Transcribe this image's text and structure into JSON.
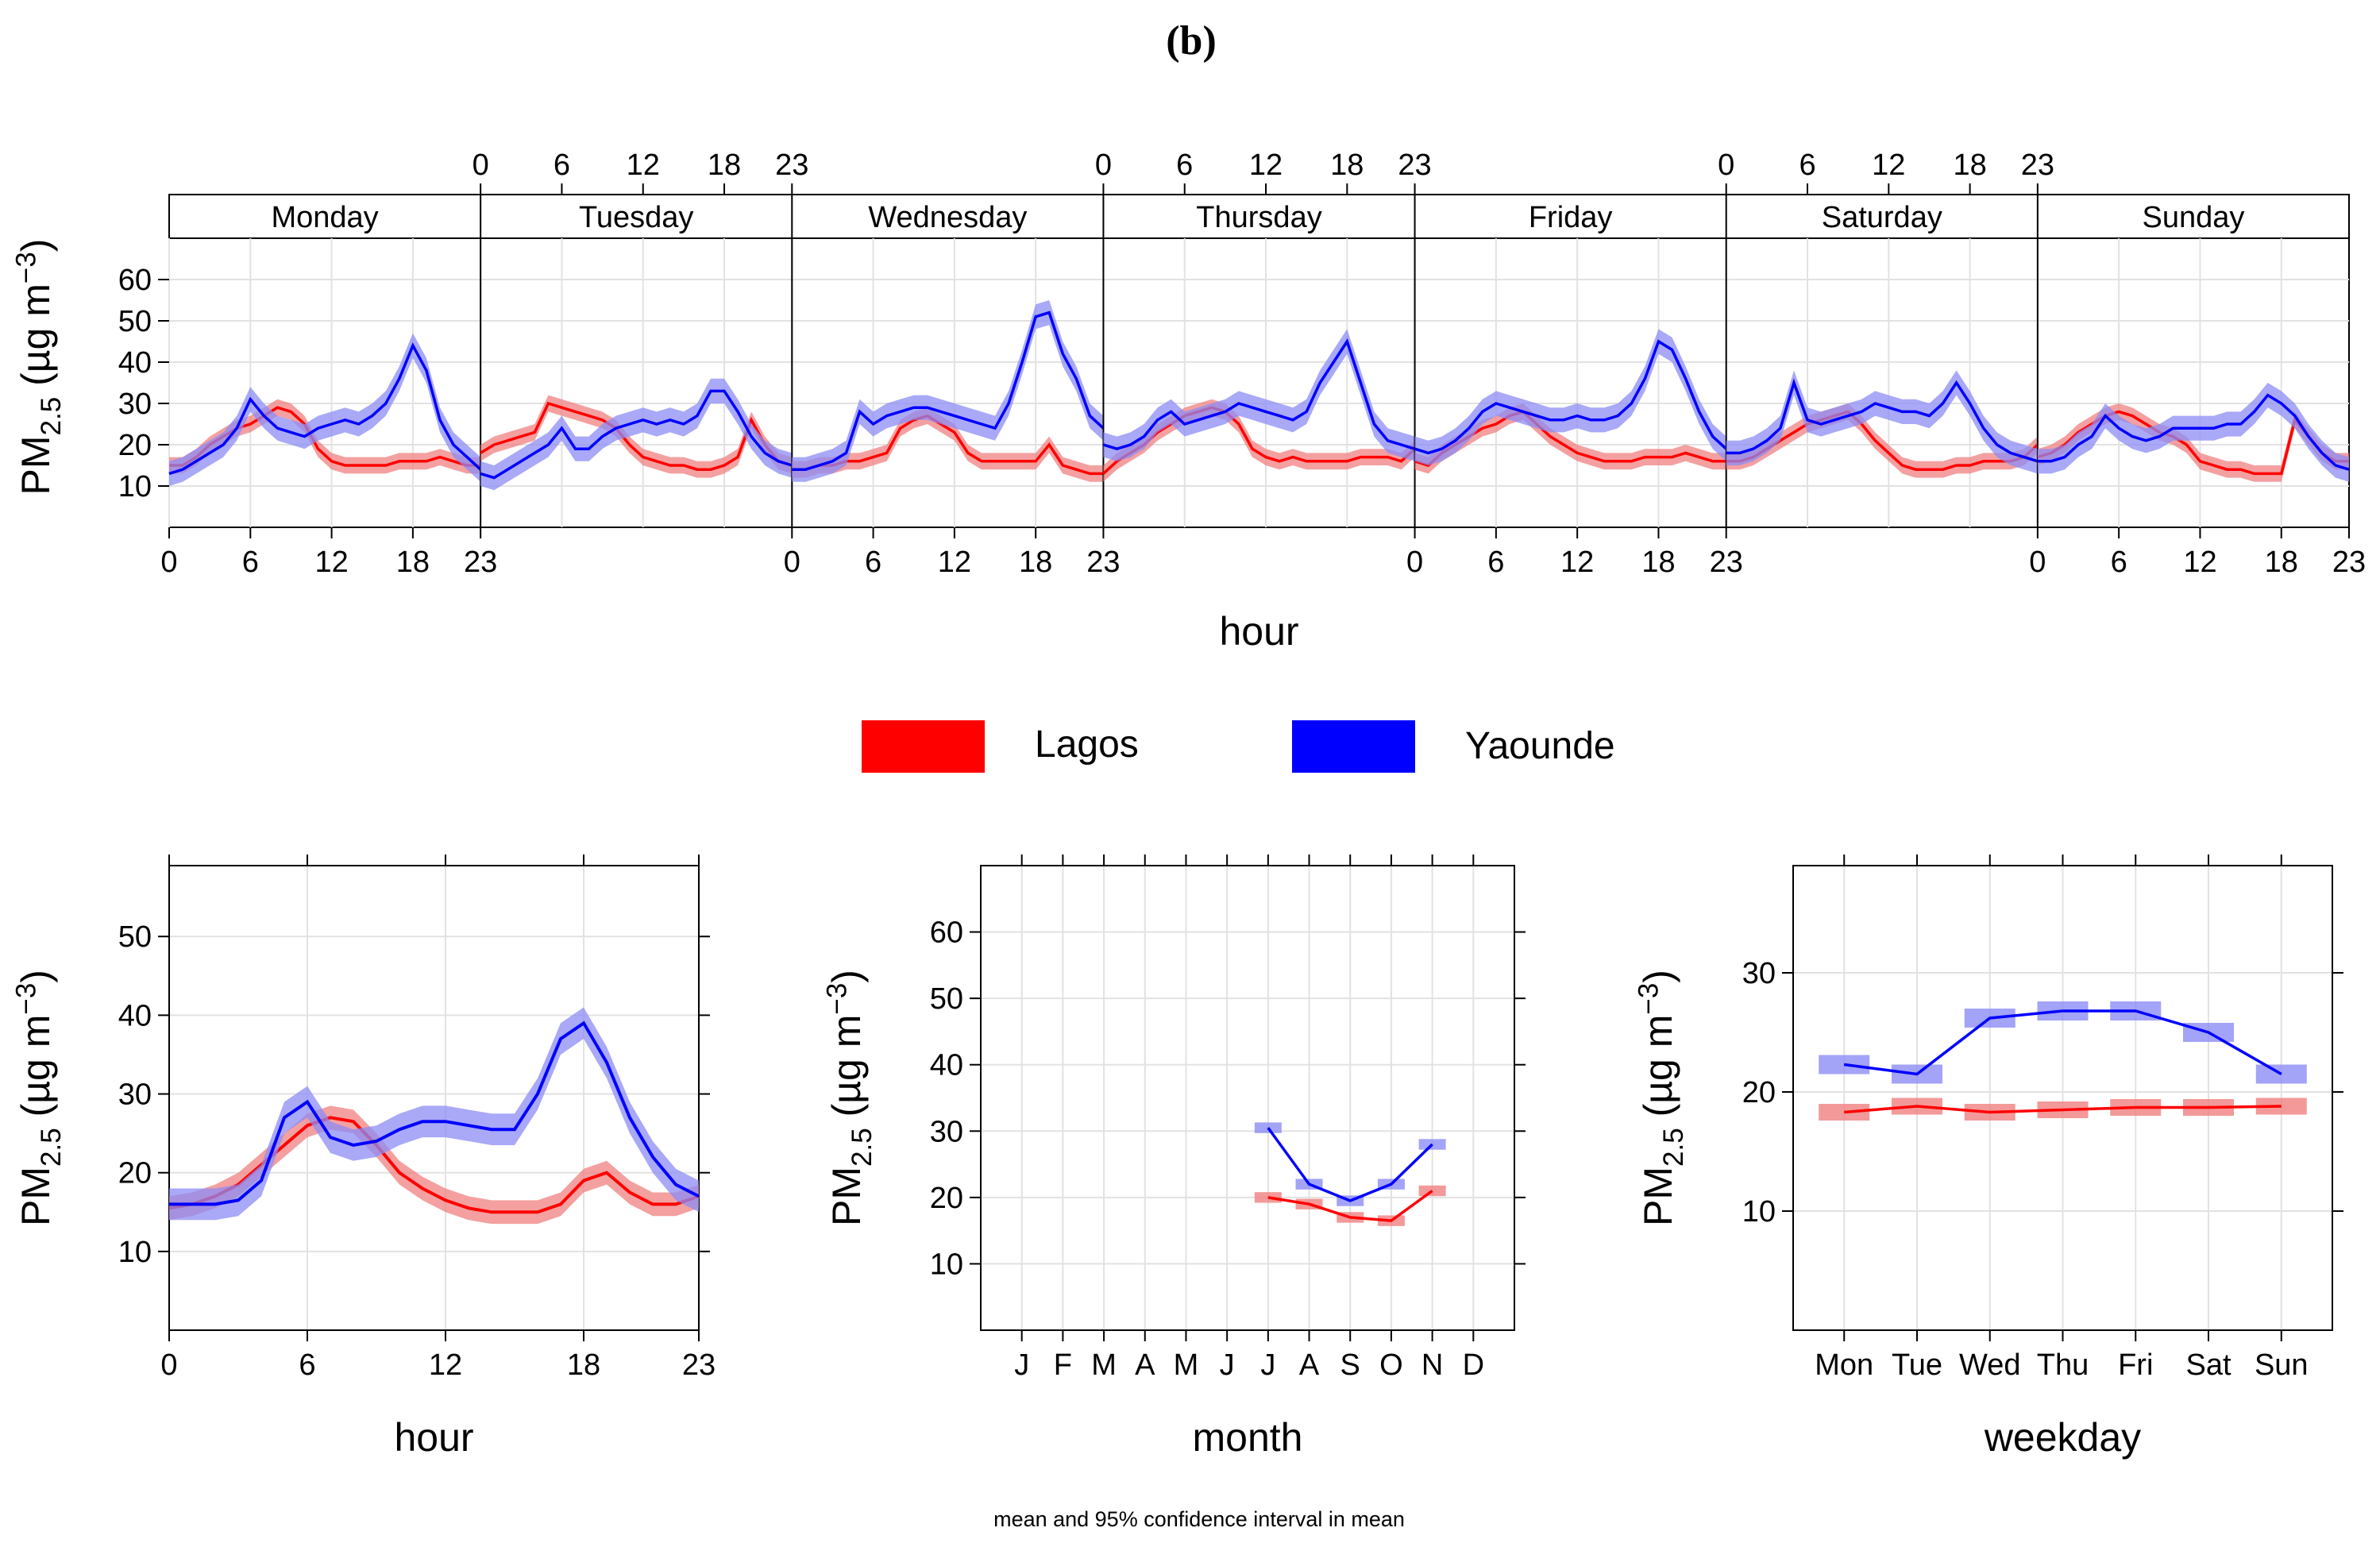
{
  "figure": {
    "panel_label": "(b)",
    "footnote": "mean and 95% confidence interval in mean"
  },
  "legend": {
    "items": [
      {
        "name": "Lagos",
        "color": "#ff0000"
      },
      {
        "name": "Yaounde",
        "color": "#0000ff"
      }
    ]
  },
  "colors": {
    "lagos": "#ff0000",
    "yaounde": "#0000ff",
    "lagos_band": "#f08080",
    "yaounde_band": "#8c8cf5",
    "grid": "#e2e2e2"
  },
  "chart_data": [
    {
      "id": "hour_by_weekday",
      "type": "line",
      "title": "",
      "xlabel": "hour",
      "ylabel": "PM2.5 (µg m-3)",
      "ylabel_parts": {
        "main": "PM",
        "sub": "2.5",
        "unit": " (µg m",
        "sup": "−3",
        "close": ")"
      },
      "ylim": [
        0,
        70
      ],
      "yticks": [
        10,
        20,
        30,
        40,
        50,
        60
      ],
      "facet_labels": [
        "Monday",
        "Tuesday",
        "Wednesday",
        "Thursday",
        "Friday",
        "Saturday",
        "Sunday"
      ],
      "xtick_labels": [
        "0",
        "6",
        "12",
        "18",
        "23"
      ],
      "series": [
        {
          "name": "Lagos",
          "ci": 2,
          "values": [
            [
              15,
              15,
              17,
              20,
              22,
              24,
              25,
              27,
              29,
              28,
              25,
              19,
              16,
              15,
              15,
              15,
              15,
              16,
              16,
              16,
              17,
              16,
              15,
              15
            ],
            [
              18,
              20,
              21,
              22,
              23,
              30,
              29,
              28,
              27,
              26,
              24,
              20,
              17,
              16,
              15,
              15,
              14,
              14,
              15,
              17,
              26,
              20,
              16,
              15
            ],
            [
              14,
              14,
              15,
              15,
              16,
              16,
              17,
              18,
              24,
              26,
              27,
              25,
              23,
              18,
              16,
              16,
              16,
              16,
              16,
              20,
              15,
              14,
              13,
              13
            ],
            [
              13,
              16,
              18,
              20,
              23,
              25,
              27,
              28,
              29,
              28,
              25,
              19,
              17,
              16,
              17,
              16,
              16,
              16,
              16,
              17,
              17,
              17,
              16,
              19
            ],
            [
              16,
              15,
              18,
              20,
              22,
              24,
              25,
              27,
              28,
              25,
              22,
              20,
              18,
              17,
              16,
              16,
              16,
              17,
              17,
              17,
              18,
              17,
              16,
              16
            ],
            [
              16,
              16,
              17,
              19,
              21,
              23,
              25,
              26,
              27,
              28,
              25,
              21,
              18,
              15,
              14,
              14,
              14,
              15,
              15,
              16,
              16,
              16,
              17,
              20
            ],
            [
              17,
              18,
              20,
              23,
              25,
              27,
              28,
              27,
              25,
              23,
              22,
              20,
              16,
              15,
              14,
              14,
              13,
              13,
              13,
              26,
              22,
              18,
              16,
              16
            ]
          ]
        },
        {
          "name": "Yaounde",
          "ci": 3,
          "values": [
            [
              13,
              14,
              16,
              18,
              20,
              24,
              31,
              27,
              24,
              23,
              22,
              24,
              25,
              26,
              25,
              27,
              30,
              36,
              44,
              38,
              26,
              20,
              17,
              14
            ],
            [
              13,
              12,
              14,
              16,
              18,
              20,
              24,
              19,
              19,
              22,
              24,
              25,
              26,
              25,
              26,
              25,
              27,
              33,
              33,
              28,
              22,
              18,
              16,
              15
            ],
            [
              14,
              14,
              15,
              16,
              18,
              28,
              25,
              27,
              28,
              29,
              29,
              28,
              27,
              26,
              25,
              24,
              30,
              40,
              51,
              52,
              42,
              36,
              27,
              24
            ],
            [
              20,
              19,
              20,
              22,
              26,
              28,
              25,
              26,
              27,
              28,
              30,
              29,
              28,
              27,
              26,
              28,
              35,
              40,
              45,
              35,
              25,
              21,
              20,
              19
            ],
            [
              19,
              18,
              19,
              21,
              24,
              28,
              30,
              29,
              28,
              27,
              26,
              26,
              27,
              26,
              26,
              27,
              30,
              36,
              45,
              43,
              36,
              28,
              22,
              19
            ],
            [
              18,
              18,
              19,
              21,
              24,
              35,
              26,
              25,
              26,
              27,
              28,
              30,
              29,
              28,
              28,
              27,
              30,
              35,
              30,
              24,
              20,
              18,
              17,
              16
            ],
            [
              16,
              16,
              17,
              20,
              22,
              27,
              24,
              22,
              21,
              22,
              24,
              24,
              24,
              24,
              25,
              25,
              28,
              32,
              30,
              27,
              22,
              18,
              15,
              14
            ]
          ]
        }
      ]
    },
    {
      "id": "hour",
      "type": "line",
      "title": "",
      "xlabel": "hour",
      "ylabel": "PM2.5 (µg m-3)",
      "ylim": [
        0,
        59
      ],
      "yticks": [
        10,
        20,
        30,
        40,
        50
      ],
      "xticks": [
        0,
        6,
        12,
        18,
        23
      ],
      "x": [
        0,
        1,
        2,
        3,
        4,
        5,
        6,
        7,
        8,
        9,
        10,
        11,
        12,
        13,
        14,
        15,
        16,
        17,
        18,
        19,
        20,
        21,
        22,
        23
      ],
      "series": [
        {
          "name": "Lagos",
          "ci": 1.5,
          "values": [
            15.5,
            16,
            17,
            18.5,
            21,
            23.5,
            26,
            27,
            26.5,
            23.5,
            20,
            18,
            16.5,
            15.5,
            15,
            15,
            15,
            16,
            19,
            20,
            17.5,
            16,
            16,
            17
          ]
        },
        {
          "name": "Yaounde",
          "ci": 2,
          "values": [
            16,
            16,
            16,
            16.5,
            19,
            27,
            29,
            24.5,
            23.5,
            24,
            25.5,
            26.5,
            26.5,
            26,
            25.5,
            25.5,
            30,
            37,
            39,
            34,
            27,
            22,
            18.5,
            17
          ]
        }
      ]
    },
    {
      "id": "month",
      "type": "line",
      "title": "",
      "xlabel": "month",
      "ylabel": "PM2.5 (µg m-3)",
      "ylim": [
        0,
        70
      ],
      "yticks": [
        10,
        20,
        30,
        40,
        50,
        60
      ],
      "categories": [
        "J",
        "F",
        "M",
        "A",
        "M",
        "J",
        "J",
        "A",
        "S",
        "O",
        "N",
        "D"
      ],
      "series": [
        {
          "name": "Lagos",
          "ci": 0.8,
          "values": [
            null,
            null,
            null,
            null,
            null,
            null,
            20,
            19,
            17,
            16.5,
            21,
            null
          ]
        },
        {
          "name": "Yaounde",
          "ci": 0.8,
          "values": [
            null,
            null,
            null,
            null,
            null,
            null,
            30.5,
            22,
            19.5,
            22,
            28,
            null
          ]
        }
      ]
    },
    {
      "id": "weekday",
      "type": "line",
      "title": "",
      "xlabel": "weekday",
      "ylabel": "PM2.5 (µg m-3)",
      "ylim": [
        0,
        39
      ],
      "yticks": [
        10,
        20,
        30
      ],
      "categories": [
        "Mon",
        "Tue",
        "Wed",
        "Thu",
        "Fri",
        "Sat",
        "Sun"
      ],
      "series": [
        {
          "name": "Lagos",
          "ci": 0.7,
          "values": [
            18.3,
            18.8,
            18.3,
            18.5,
            18.7,
            18.7,
            18.8
          ]
        },
        {
          "name": "Yaounde",
          "ci": 0.8,
          "values": [
            22.3,
            21.5,
            26.2,
            26.8,
            26.8,
            25,
            21.5
          ]
        }
      ]
    }
  ]
}
